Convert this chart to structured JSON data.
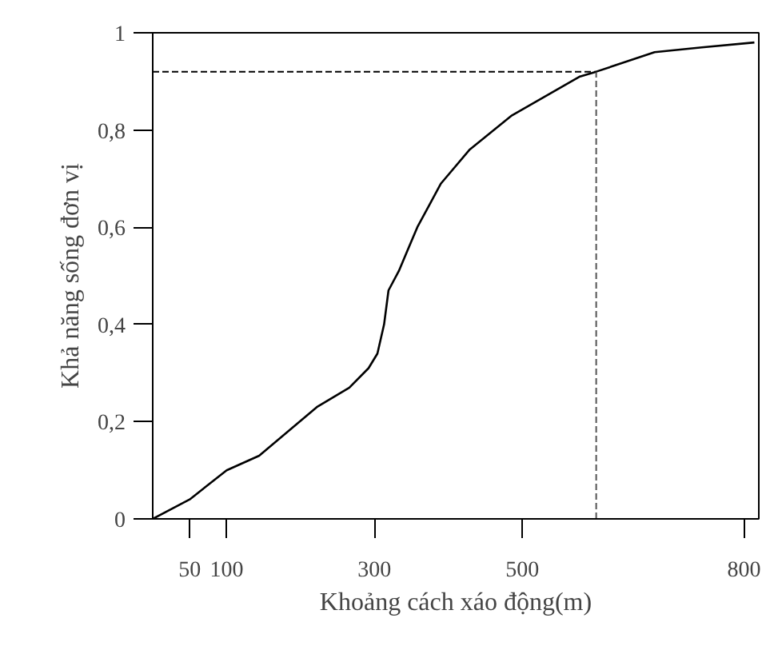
{
  "chart_data": {
    "type": "line",
    "xlabel": "Khoảng cách xáo động(m)",
    "ylabel": "Khả năng sống đơn vị",
    "series": [
      {
        "color": "#000000",
        "x": [
          0,
          50,
          100,
          144,
          222,
          266,
          292,
          304,
          313,
          319,
          333,
          358,
          390,
          429,
          486,
          578,
          600,
          679,
          743,
          814
        ],
        "values": [
          0,
          0.04,
          0.1,
          0.13,
          0.23,
          0.27,
          0.31,
          0.34,
          0.4,
          0.47,
          0.51,
          0.6,
          0.69,
          0.76,
          0.83,
          0.91,
          0.92,
          0.96,
          0.97,
          0.98
        ]
      }
    ],
    "xlim": [
      0,
      820
    ],
    "xticks": [
      50,
      100,
      300,
      500,
      800
    ],
    "ylim": [
      0,
      1
    ],
    "yticks": [
      0,
      {
        "value": 0.2,
        "label": "0,2"
      },
      {
        "value": 0.4,
        "label": "0,4"
      },
      {
        "value": 0.6,
        "label": "0,6"
      },
      {
        "value": 0.8,
        "label": "0,8"
      },
      1
    ],
    "ref_lines": [
      {
        "axis": "x",
        "value": 600,
        "line_style": "dashed",
        "color": "#555555"
      },
      {
        "axis": "y",
        "value": 0.92,
        "line_style": "dashed",
        "color": "#000000"
      }
    ],
    "grid": false,
    "marker": "none",
    "line_style": "solid"
  }
}
